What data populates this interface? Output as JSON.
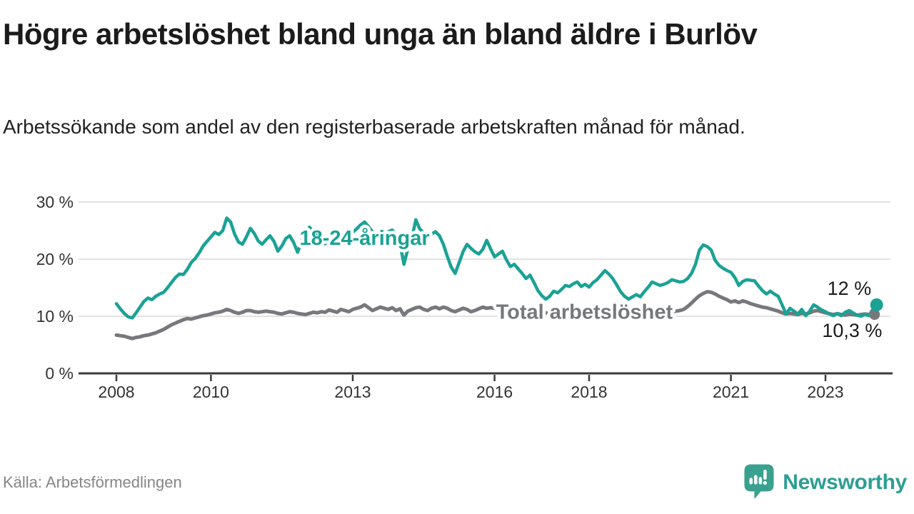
{
  "title": "Högre arbetslöshet bland unga än bland äldre i Burlöv",
  "subtitle": "Arbetssökande som andel av den registerbaserade arbetskraften månad för månad.",
  "source": "Källa: Arbetsförmedlingen",
  "brand": {
    "name": "Newsworthy",
    "color": "#2d9e92",
    "logo_icon": "bar-chart-speech-bubble",
    "logo_color": "#3aa18f"
  },
  "colors": {
    "accent_teal": "#1aa295",
    "line_gray": "#77787b",
    "grid": "#d8d8d8",
    "axis": "#3a3a3a",
    "axis_text": "#333333",
    "text_dark": "#1a1a1a",
    "background": "#ffffff"
  },
  "chart_data": {
    "type": "line",
    "title": "Högre arbetslöshet bland unga än bland äldre i Burlöv",
    "subtitle": "Arbetssökande som andel av den registerbaserade arbetskraften månad för månad.",
    "unit": "%",
    "x_axis": {
      "start_year": 2008,
      "months_per_point": 1,
      "ticks": [
        {
          "year": 2008,
          "label": "2008"
        },
        {
          "year": 2010,
          "label": "2010"
        },
        {
          "year": 2013,
          "label": "2013"
        },
        {
          "year": 2016,
          "label": "2016"
        },
        {
          "year": 2018,
          "label": "2018"
        },
        {
          "year": 2021,
          "label": "2021"
        },
        {
          "year": 2023,
          "label": "2023"
        }
      ]
    },
    "y_axis": {
      "ylim": [
        0,
        30
      ],
      "ticks": [
        {
          "value": 30,
          "label": "30 %"
        },
        {
          "value": 20,
          "label": "20 %"
        },
        {
          "value": 10,
          "label": "10 %"
        },
        {
          "value": 0,
          "label": "0 %"
        }
      ]
    },
    "grid": true,
    "legend_position": "inline-labels",
    "value_labels": [
      {
        "text": "12 %",
        "anchor_year": 2023.97,
        "anchor_pct": 13.75
      },
      {
        "text": "10,3 %",
        "anchor_year": 2024.2,
        "anchor_pct": 6.4
      }
    ],
    "series": [
      {
        "name": "18-24-åringar",
        "color": "#1aa295",
        "end_value": 12.0,
        "end_label": "12 %",
        "label_pos": {
          "year": 2013.25,
          "pct": 23.6
        },
        "values": [
          12.2,
          11.3,
          10.5,
          9.9,
          9.7,
          10.6,
          11.6,
          12.6,
          13.2,
          12.9,
          13.5,
          13.9,
          14.2,
          15.0,
          15.9,
          16.8,
          17.4,
          17.3,
          18.2,
          19.4,
          20.1,
          21.1,
          22.3,
          23.1,
          23.9,
          24.7,
          24.3,
          25.0,
          27.2,
          26.5,
          24.4,
          23.0,
          22.6,
          23.9,
          25.4,
          24.5,
          23.2,
          22.6,
          23.4,
          24.1,
          23.1,
          21.4,
          22.3,
          23.6,
          24.1,
          22.9,
          21.2,
          23.1,
          24.7,
          25.6,
          24.8,
          24.1,
          23.4,
          22.7,
          23.3,
          24.2,
          25.0,
          24.4,
          23.7,
          24.0,
          24.7,
          25.3,
          26.0,
          26.5,
          25.7,
          24.8,
          24.1,
          23.5,
          24.1,
          24.8,
          25.1,
          24.3,
          22.7,
          19.1,
          21.8,
          23.6,
          26.9,
          25.3,
          24.6,
          24.0,
          24.4,
          24.8,
          24.1,
          22.6,
          20.5,
          18.6,
          17.5,
          19.4,
          21.3,
          22.6,
          21.9,
          21.3,
          20.9,
          21.7,
          23.3,
          21.8,
          20.4,
          20.9,
          21.4,
          19.9,
          18.7,
          19.1,
          18.3,
          17.5,
          16.6,
          17.2,
          15.9,
          14.5,
          13.6,
          13.0,
          13.5,
          14.4,
          14.1,
          14.7,
          15.4,
          15.2,
          15.7,
          16.0,
          15.2,
          15.6,
          15.1,
          15.9,
          16.4,
          17.2,
          18.0,
          17.4,
          16.6,
          15.5,
          14.3,
          13.5,
          13.0,
          13.4,
          13.8,
          13.4,
          14.3,
          15.1,
          16.0,
          15.7,
          15.4,
          15.6,
          15.9,
          16.4,
          16.2,
          16.0,
          16.1,
          16.6,
          17.5,
          19.1,
          21.6,
          22.5,
          22.2,
          21.6,
          19.8,
          18.9,
          18.4,
          18.0,
          17.7,
          16.8,
          15.4,
          16.1,
          16.4,
          16.3,
          16.2,
          15.3,
          14.5,
          13.9,
          14.4,
          13.9,
          13.5,
          12.0,
          10.4,
          11.4,
          10.9,
          10.4,
          11.2,
          10.1,
          10.9,
          12.0,
          11.6,
          11.1,
          10.8,
          10.4,
          10.1,
          10.5,
          10.1,
          10.7,
          11.0,
          10.6,
          10.2,
          10.0,
          10.3,
          10.1,
          11.2,
          12.0
        ]
      },
      {
        "name": "Total arbetslöshet",
        "color": "#77787b",
        "end_value": 10.3,
        "end_label": "10,3 %",
        "label_pos": {
          "year": 2017.9,
          "pct": 10.7
        },
        "values": [
          6.7,
          6.6,
          6.5,
          6.3,
          6.1,
          6.3,
          6.4,
          6.6,
          6.7,
          6.9,
          7.1,
          7.4,
          7.7,
          8.1,
          8.5,
          8.8,
          9.1,
          9.4,
          9.6,
          9.5,
          9.7,
          9.9,
          10.1,
          10.2,
          10.4,
          10.6,
          10.7,
          10.9,
          11.2,
          11.0,
          10.7,
          10.5,
          10.7,
          11.0,
          11.0,
          10.8,
          10.7,
          10.8,
          10.9,
          10.8,
          10.7,
          10.5,
          10.4,
          10.6,
          10.8,
          10.7,
          10.5,
          10.4,
          10.3,
          10.5,
          10.7,
          10.6,
          10.8,
          10.7,
          11.1,
          10.9,
          10.7,
          11.2,
          11.0,
          10.8,
          11.2,
          11.4,
          11.6,
          12.0,
          11.5,
          11.0,
          11.3,
          11.6,
          11.4,
          11.2,
          11.5,
          11.0,
          11.3,
          10.2,
          10.9,
          11.2,
          11.5,
          11.6,
          11.2,
          11.0,
          11.4,
          11.6,
          11.3,
          11.6,
          11.4,
          11.0,
          10.8,
          11.1,
          11.4,
          11.2,
          10.8,
          11.0,
          11.3,
          11.6,
          11.4,
          11.5,
          11.4,
          11.5,
          11.3,
          11.2,
          11.0,
          11.0,
          10.9,
          10.8,
          10.9,
          11.0,
          10.9,
          10.8,
          10.8,
          10.6,
          10.5,
          10.6,
          10.7,
          10.8,
          10.9,
          10.8,
          10.7,
          10.6,
          10.5,
          10.5,
          10.4,
          10.3,
          10.2,
          10.1,
          10.0,
          9.9,
          10.0,
          10.1,
          10.0,
          9.9,
          9.9,
          10.0,
          10.0,
          10.1,
          10.2,
          10.3,
          10.4,
          10.5,
          10.6,
          10.6,
          10.7,
          10.8,
          10.9,
          11.0,
          11.2,
          11.7,
          12.3,
          13.0,
          13.6,
          14.0,
          14.3,
          14.2,
          13.9,
          13.5,
          13.2,
          12.9,
          12.5,
          12.7,
          12.4,
          12.7,
          12.5,
          12.2,
          12.0,
          11.8,
          11.6,
          11.5,
          11.3,
          11.1,
          10.9,
          10.6,
          10.4,
          10.5,
          10.4,
          10.3,
          10.5,
          10.4,
          10.6,
          10.9,
          11.0,
          10.8,
          10.6,
          10.45,
          10.3,
          10.45,
          10.3,
          10.2,
          10.35,
          10.3,
          10.2,
          10.3,
          10.4,
          10.3,
          10.25,
          10.3
        ]
      }
    ]
  }
}
